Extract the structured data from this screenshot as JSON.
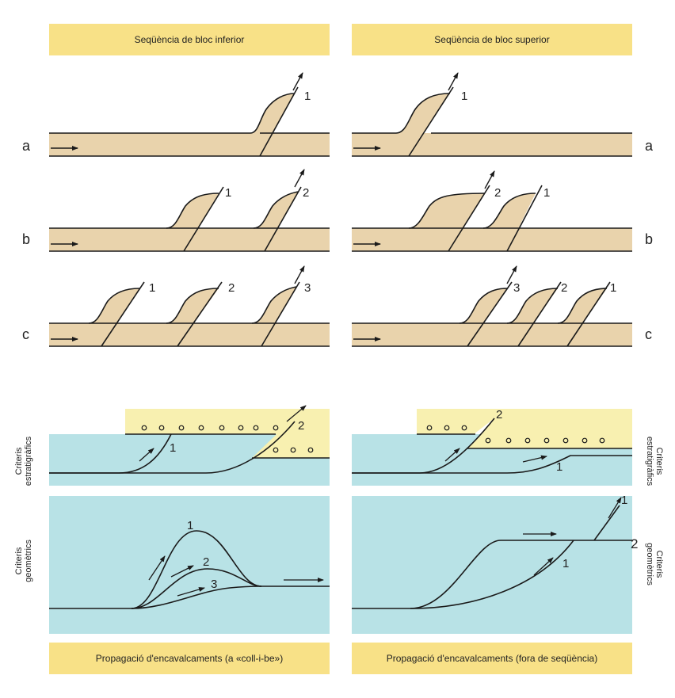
{
  "banners": {
    "top_left": "Seqüència de bloc inferior",
    "top_right": "Seqüència de bloc superior",
    "bottom_left": "Propagació d'encavalcaments (a «coll-i-be»)",
    "bottom_right": "Propagació d'encavalcaments (fora de seqüència)"
  },
  "rows": {
    "a": "a",
    "b": "b",
    "c": "c"
  },
  "side_labels": {
    "strat_left": [
      "Criteris",
      "estratigràfics"
    ],
    "geom_left": [
      "Criteris",
      "geomètrics"
    ],
    "strat_right": [
      "Criteris",
      "estratigràfics"
    ],
    "geom_right": [
      "Criteris",
      "geomètrics"
    ]
  },
  "thrust_numbers": {
    "a_left": [
      "1"
    ],
    "a_right": [
      "1"
    ],
    "b_left": [
      "1",
      "2"
    ],
    "b_right": [
      "2",
      "1"
    ],
    "c_left": [
      "1",
      "2",
      "3"
    ],
    "c_right": [
      "3",
      "2",
      "1"
    ],
    "strat_left": [
      "1",
      "2"
    ],
    "strat_right": [
      "2",
      "1"
    ],
    "geom_left": [
      "1",
      "2",
      "3"
    ],
    "geom_right": [
      "1",
      "1",
      "2"
    ]
  },
  "colors": {
    "banner": "#f8e187",
    "layer": "#e9d3ac",
    "basin": "#b8e2e6",
    "sediment": "#f8f0b0",
    "line": "#1a1a1a"
  }
}
